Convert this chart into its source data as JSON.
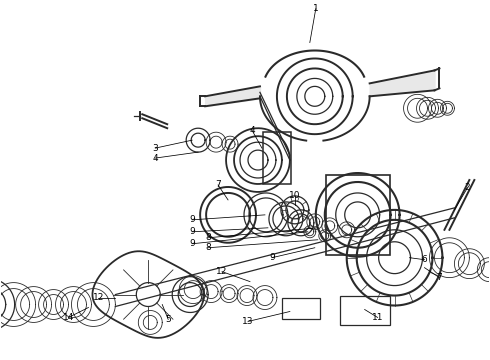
{
  "bg_color": "#ffffff",
  "line_color": "#2a2a2a",
  "fig_width": 4.9,
  "fig_height": 3.6,
  "dpi": 100,
  "label_fontsize": 6.5,
  "lw": 0.9
}
